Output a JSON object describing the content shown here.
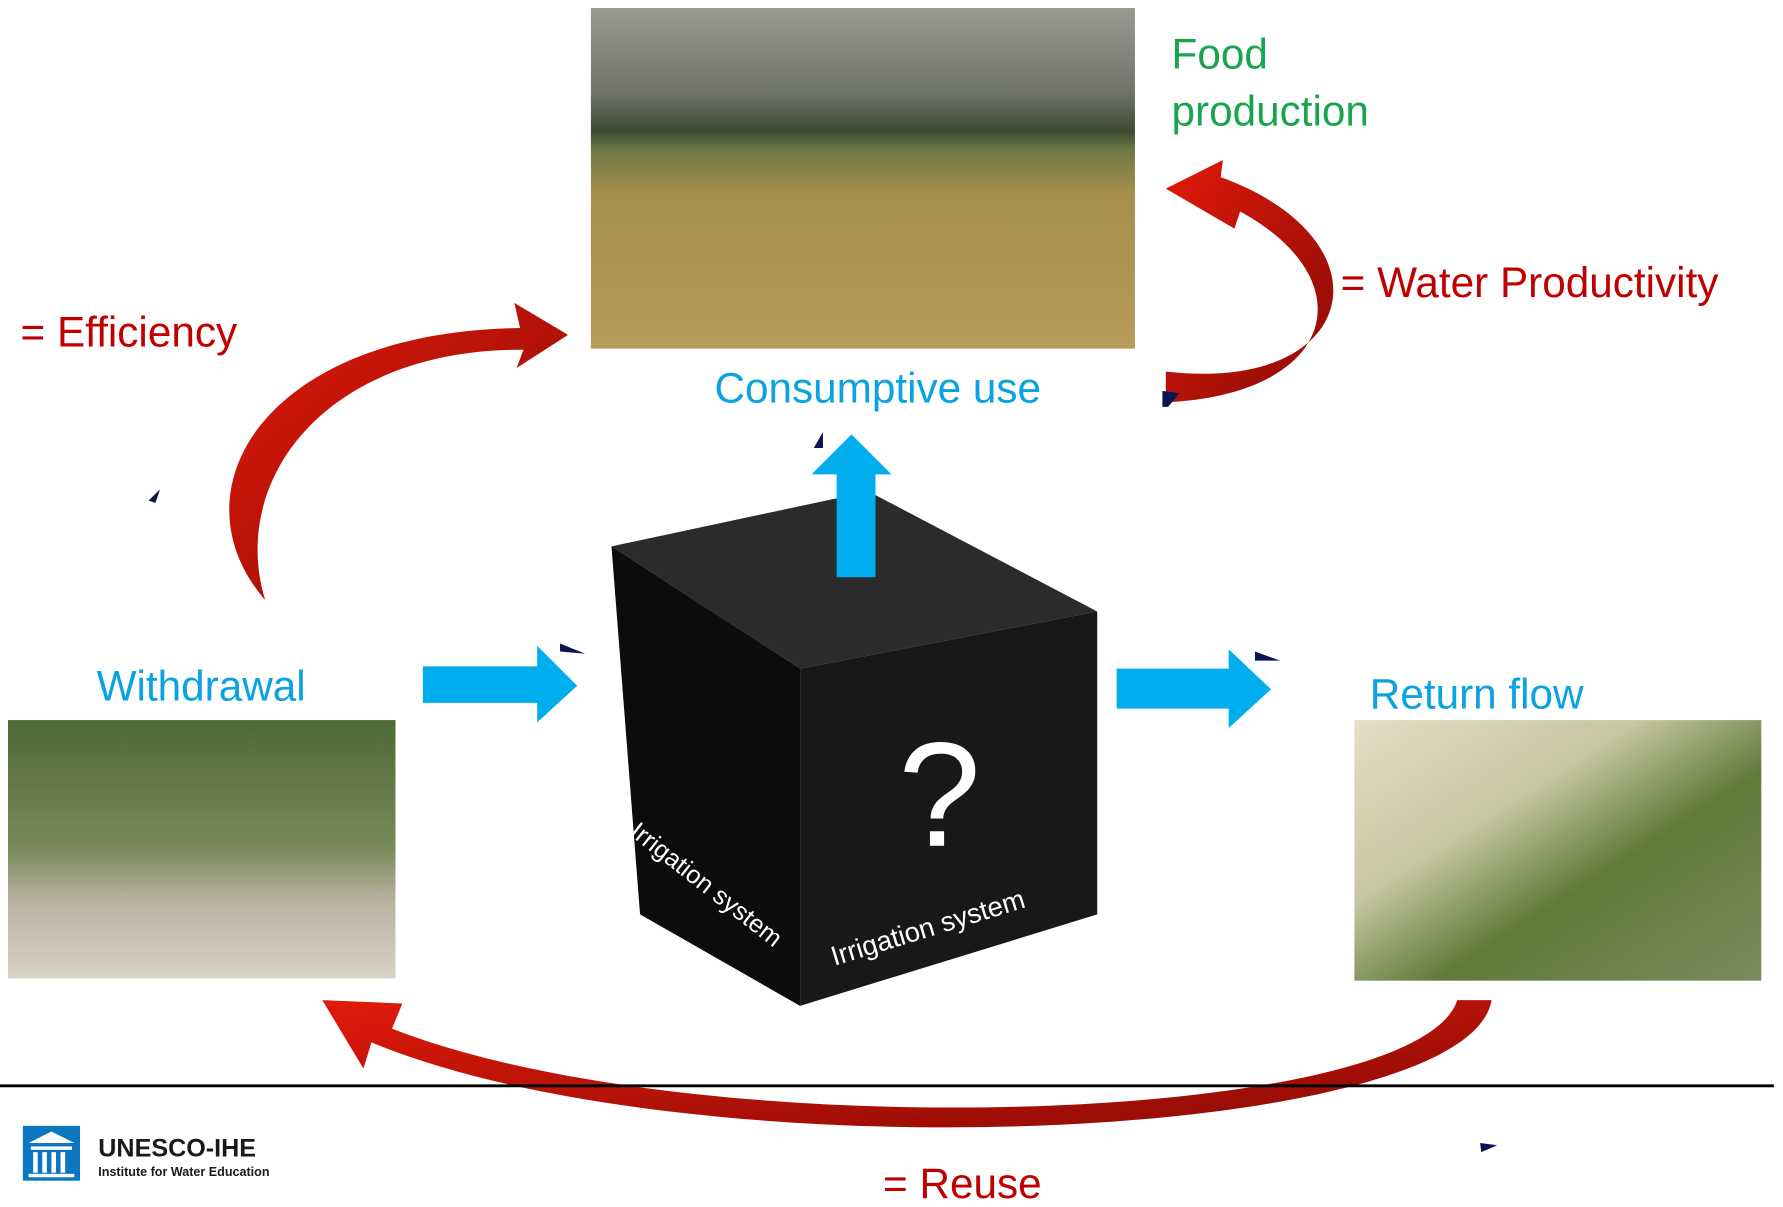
{
  "labels": {
    "food_production": [
      "Food",
      "production"
    ],
    "water_productivity": "= Water Productivity",
    "efficiency": "= Efficiency",
    "consumptive_use": "Consumptive use",
    "withdrawal": "Withdrawal",
    "return_flow": "Return flow",
    "cube_left": "Irrigation system",
    "cube_right": "Irrigation system",
    "cube_question": "?",
    "reuse": "= Reuse"
  },
  "logo": {
    "name": "UNESCO-IHE",
    "subtitle": "Institute for Water Education"
  }
}
